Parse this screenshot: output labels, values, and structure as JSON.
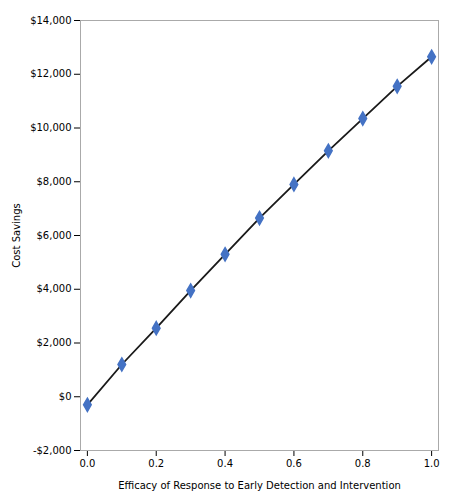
{
  "chart_data": {
    "type": "line",
    "x": [
      0,
      0.1,
      0.2,
      0.3,
      0.4,
      0.5,
      0.6,
      0.7,
      0.8,
      0.9,
      1.0
    ],
    "series": [
      {
        "type": "line",
        "color": "#1a1a1a",
        "values": [
          -300,
          1200,
          2550,
          3950,
          5300,
          6650,
          7900,
          9150,
          10350,
          11550,
          12650
        ]
      },
      {
        "type": "scatter",
        "color": "#4472c4",
        "marker": "diamond",
        "values": [
          -300,
          1200,
          2550,
          3950,
          5300,
          6650,
          7900,
          9150,
          10350,
          11550,
          12650
        ]
      }
    ],
    "xlim": [
      -0.02,
      1.02
    ],
    "ylim": [
      -2000,
      14000
    ],
    "xticks": [
      {
        "value": 0,
        "label": "0.0"
      },
      0.2,
      0.4,
      0.6,
      0.8,
      {
        "value": 1.0,
        "label": "1.0"
      }
    ],
    "yticks": [
      {
        "value": -2000,
        "label": "-$2,000"
      },
      {
        "value": 0,
        "label": "$0"
      },
      {
        "value": 2000,
        "label": "$2,000"
      },
      {
        "value": 4000,
        "label": "$4,000"
      },
      {
        "value": 6000,
        "label": "$6,000"
      },
      {
        "value": 8000,
        "label": "$8,000"
      },
      {
        "value": 10000,
        "label": "$10,000"
      },
      {
        "value": 12000,
        "label": "$12,000"
      },
      {
        "value": 14000,
        "label": "$14,000"
      }
    ],
    "xlabel": "Efficacy of Response to Early Detection and Intervention",
    "ylabel": "Cost Savings",
    "grid": false
  }
}
